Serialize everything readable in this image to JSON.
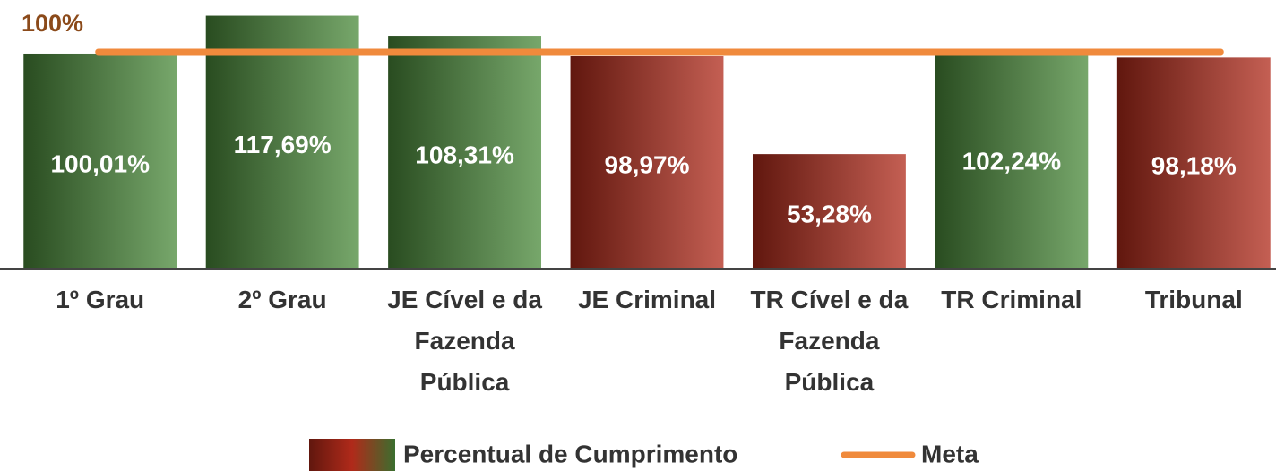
{
  "chart_data": {
    "type": "bar",
    "categories": [
      "1º Grau",
      "2º Grau",
      "JE Cível e da Fazenda Pública",
      "JE Criminal",
      "TR Cível e da Fazenda Pública",
      "TR Criminal",
      "Tribunal"
    ],
    "series": [
      {
        "name": "Percentual de Cumprimento",
        "values": [
          100.01,
          117.69,
          108.31,
          98.97,
          53.28,
          102.24,
          98.18
        ],
        "value_labels": [
          "100,01%",
          "117,69%",
          "108,31%",
          "98,97%",
          "53,28%",
          "102,24%",
          "98,18%"
        ],
        "colors": [
          "#4a8a3a",
          "#4a8a3a",
          "#4a8a3a",
          "#b02a1a",
          "#b02a1a",
          "#4a8a3a",
          "#b02a1a"
        ]
      }
    ],
    "reference_line": {
      "name": "Meta",
      "value": 100,
      "label": "100%",
      "color": "#f08a3c"
    },
    "ylim": [
      0,
      125
    ]
  }
}
